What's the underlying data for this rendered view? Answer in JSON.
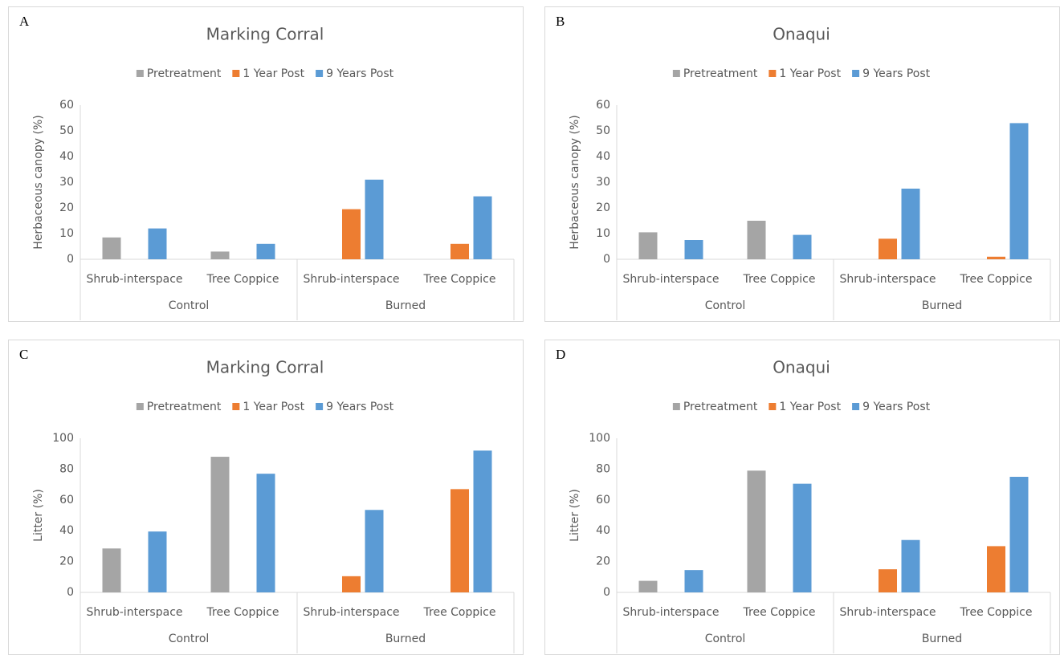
{
  "chart_data": [
    {
      "type": "bar",
      "panel": "A",
      "title": "Marking Corral",
      "y_label": "Herbaceous canopy (%)",
      "groups": [
        {
          "name": "Control",
          "categories": [
            "Shrub-interspace",
            "Tree Coppice"
          ]
        },
        {
          "name": "Burned",
          "categories": [
            "Shrub-interspace",
            "Tree Coppice"
          ]
        }
      ],
      "series": [
        {
          "name": "Pretreatment",
          "color": "#a5a5a5",
          "values": [
            8.5,
            3,
            null,
            null
          ]
        },
        {
          "name": "1 Year Post",
          "color": "#ed7d31",
          "values": [
            null,
            null,
            19.5,
            6
          ]
        },
        {
          "name": "9 Years Post",
          "color": "#5b9bd5",
          "values": [
            12,
            6,
            31,
            24.5
          ]
        }
      ],
      "ylim": [
        0,
        60
      ],
      "yticks": [
        0,
        10,
        20,
        30,
        40,
        50,
        60
      ]
    },
    {
      "type": "bar",
      "panel": "B",
      "title": "Onaqui",
      "y_label": "Herbaceous canopy (%)",
      "groups": [
        {
          "name": "Control",
          "categories": [
            "Shrub-interspace",
            "Tree Coppice"
          ]
        },
        {
          "name": "Burned",
          "categories": [
            "Shrub-interspace",
            "Tree Coppice"
          ]
        }
      ],
      "series": [
        {
          "name": "Pretreatment",
          "color": "#a5a5a5",
          "values": [
            10.5,
            15,
            null,
            null
          ]
        },
        {
          "name": "1 Year Post",
          "color": "#ed7d31",
          "values": [
            null,
            null,
            8,
            1
          ]
        },
        {
          "name": "9 Years Post",
          "color": "#5b9bd5",
          "values": [
            7.5,
            9.5,
            27.5,
            53
          ]
        }
      ],
      "ylim": [
        0,
        60
      ],
      "yticks": [
        0,
        10,
        20,
        30,
        40,
        50,
        60
      ]
    },
    {
      "type": "bar",
      "panel": "C",
      "title": "Marking Corral",
      "y_label": "Litter (%)",
      "groups": [
        {
          "name": "Control",
          "categories": [
            "Shrub-interspace",
            "Tree Coppice"
          ]
        },
        {
          "name": "Burned",
          "categories": [
            "Shrub-interspace",
            "Tree Coppice"
          ]
        }
      ],
      "series": [
        {
          "name": "Pretreatment",
          "color": "#a5a5a5",
          "values": [
            28.5,
            88,
            null,
            null
          ]
        },
        {
          "name": "1 Year Post",
          "color": "#ed7d31",
          "values": [
            null,
            null,
            10.5,
            67
          ]
        },
        {
          "name": "9 Years Post",
          "color": "#5b9bd5",
          "values": [
            39.5,
            77,
            53.5,
            92
          ]
        }
      ],
      "ylim": [
        0,
        100
      ],
      "yticks": [
        0,
        20,
        40,
        60,
        80,
        100
      ]
    },
    {
      "type": "bar",
      "panel": "D",
      "title": "Onaqui",
      "y_label": "Litter (%)",
      "groups": [
        {
          "name": "Control",
          "categories": [
            "Shrub-interspace",
            "Tree Coppice"
          ]
        },
        {
          "name": "Burned",
          "categories": [
            "Shrub-interspace",
            "Tree Coppice"
          ]
        }
      ],
      "series": [
        {
          "name": "Pretreatment",
          "color": "#a5a5a5",
          "values": [
            7.5,
            79,
            null,
            null
          ]
        },
        {
          "name": "1 Year Post",
          "color": "#ed7d31",
          "values": [
            null,
            null,
            15,
            30
          ]
        },
        {
          "name": "9 Years Post",
          "color": "#5b9bd5",
          "values": [
            14.5,
            70.5,
            34,
            75
          ]
        }
      ],
      "ylim": [
        0,
        100
      ],
      "yticks": [
        0,
        20,
        40,
        60,
        80,
        100
      ]
    }
  ]
}
